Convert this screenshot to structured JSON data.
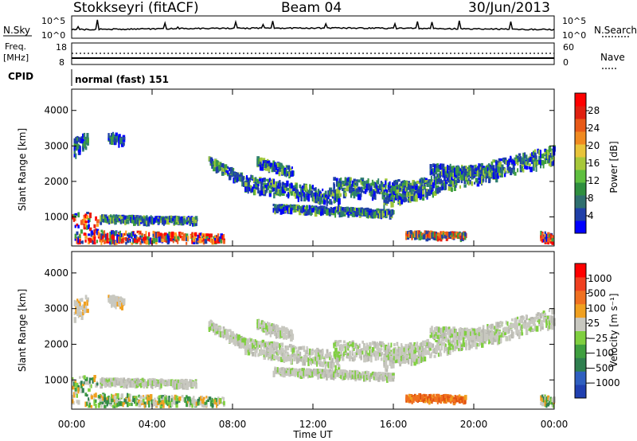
{
  "header": {
    "station": "Stokkseyri (fitACF)",
    "beam": "Beam 04",
    "date": "30/Jun/2013"
  },
  "strip": {
    "nsky_label": "N.Sky",
    "nsky_ticks": [
      "10^5",
      "10^0"
    ],
    "nsearch_label": "N.Search",
    "nsearch_ticks": [
      "10^5",
      "10^0"
    ],
    "freq_label_1": "Freq.",
    "freq_label_2": "[MHz]",
    "freq_ticks": [
      "18",
      "8"
    ],
    "nave_label": "Nave",
    "nave_ticks": [
      "60",
      "0"
    ],
    "cpid_label": "CPID",
    "cpid_text": "normal (fast) 151"
  },
  "chart_data": [
    {
      "type": "heatmap",
      "name": "power-panel",
      "ylabel": "Slant Range [km]",
      "xlabel": "Time UT",
      "y_ticks": [
        "4000",
        "3000",
        "2000",
        "1000"
      ],
      "y_tick_values": [
        4000,
        3000,
        2000,
        1000
      ],
      "ylim": [
        180,
        4600
      ],
      "xlim": [
        0,
        24
      ],
      "colorbar_label": "Power [dB]",
      "colorbar_ticks": [
        "28",
        "24",
        "20",
        "16",
        "12",
        "8",
        "4"
      ],
      "colorbar_colors": [
        "#0000ff",
        "#1f3fa8",
        "#2f6f6f",
        "#2f8f3f",
        "#5fbf3f",
        "#a7c83a",
        "#e8c43a",
        "#f08a20",
        "#e85a18",
        "#e02010",
        "#ff0000"
      ]
    },
    {
      "type": "heatmap",
      "name": "velocity-panel",
      "ylabel": "Slant Range [km]",
      "xlabel": "Time UT",
      "y_ticks": [
        "4000",
        "3000",
        "2000",
        "1000"
      ],
      "y_tick_values": [
        4000,
        3000,
        2000,
        1000
      ],
      "ylim": [
        180,
        4600
      ],
      "xlim": [
        0,
        24
      ],
      "colorbar_label": "Velocity [m s⁻¹]",
      "colorbar_ticks": [
        "1000",
        "500",
        "100",
        "25",
        "−25",
        "−100",
        "−500",
        "−1000"
      ],
      "colorbar_colors": [
        "#2040b0",
        "#2f5fc0",
        "#2f7f4f",
        "#3f9f3f",
        "#7fcf3f",
        "#c8c8c0",
        "#f0a020",
        "#f07020",
        "#f04020",
        "#ff0000"
      ]
    }
  ],
  "time_axis": {
    "labels": [
      "00:00",
      "04:00",
      "08:00",
      "12:00",
      "16:00",
      "20:00",
      "00:00"
    ],
    "label_hours": [
      0,
      4,
      8,
      12,
      16,
      20,
      24
    ],
    "title": "Time UT"
  }
}
